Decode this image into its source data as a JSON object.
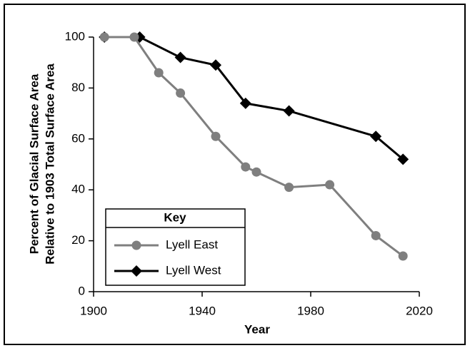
{
  "chart_data": {
    "type": "line",
    "y_label_lines": [
      "Percent of Glacial Surface Area",
      "Relative to 1903 Total Surface Area"
    ],
    "x_label": "Year",
    "legend_title": "Key",
    "xlim": [
      1900,
      2020
    ],
    "xticks": [
      1900,
      1940,
      1980,
      2020
    ],
    "ylim": [
      0,
      100
    ],
    "yticks": [
      0,
      20,
      40,
      60,
      80,
      100
    ],
    "series": [
      {
        "name": "Lyell West",
        "color": "#000000",
        "marker": "diamond",
        "x": [
          1904,
          1917,
          1932,
          1945,
          1956,
          1972,
          2004,
          2014
        ],
        "values": [
          100,
          100,
          92,
          89,
          74,
          71,
          61,
          52
        ]
      },
      {
        "name": "Lyell East",
        "color": "#7f7f7f",
        "marker": "circle",
        "x": [
          1904,
          1915,
          1924,
          1932,
          1945,
          1956,
          1960,
          1972,
          1987,
          2004,
          2014
        ],
        "values": [
          100,
          100,
          86,
          78,
          61,
          49,
          47,
          41,
          42,
          22,
          14
        ]
      }
    ]
  }
}
